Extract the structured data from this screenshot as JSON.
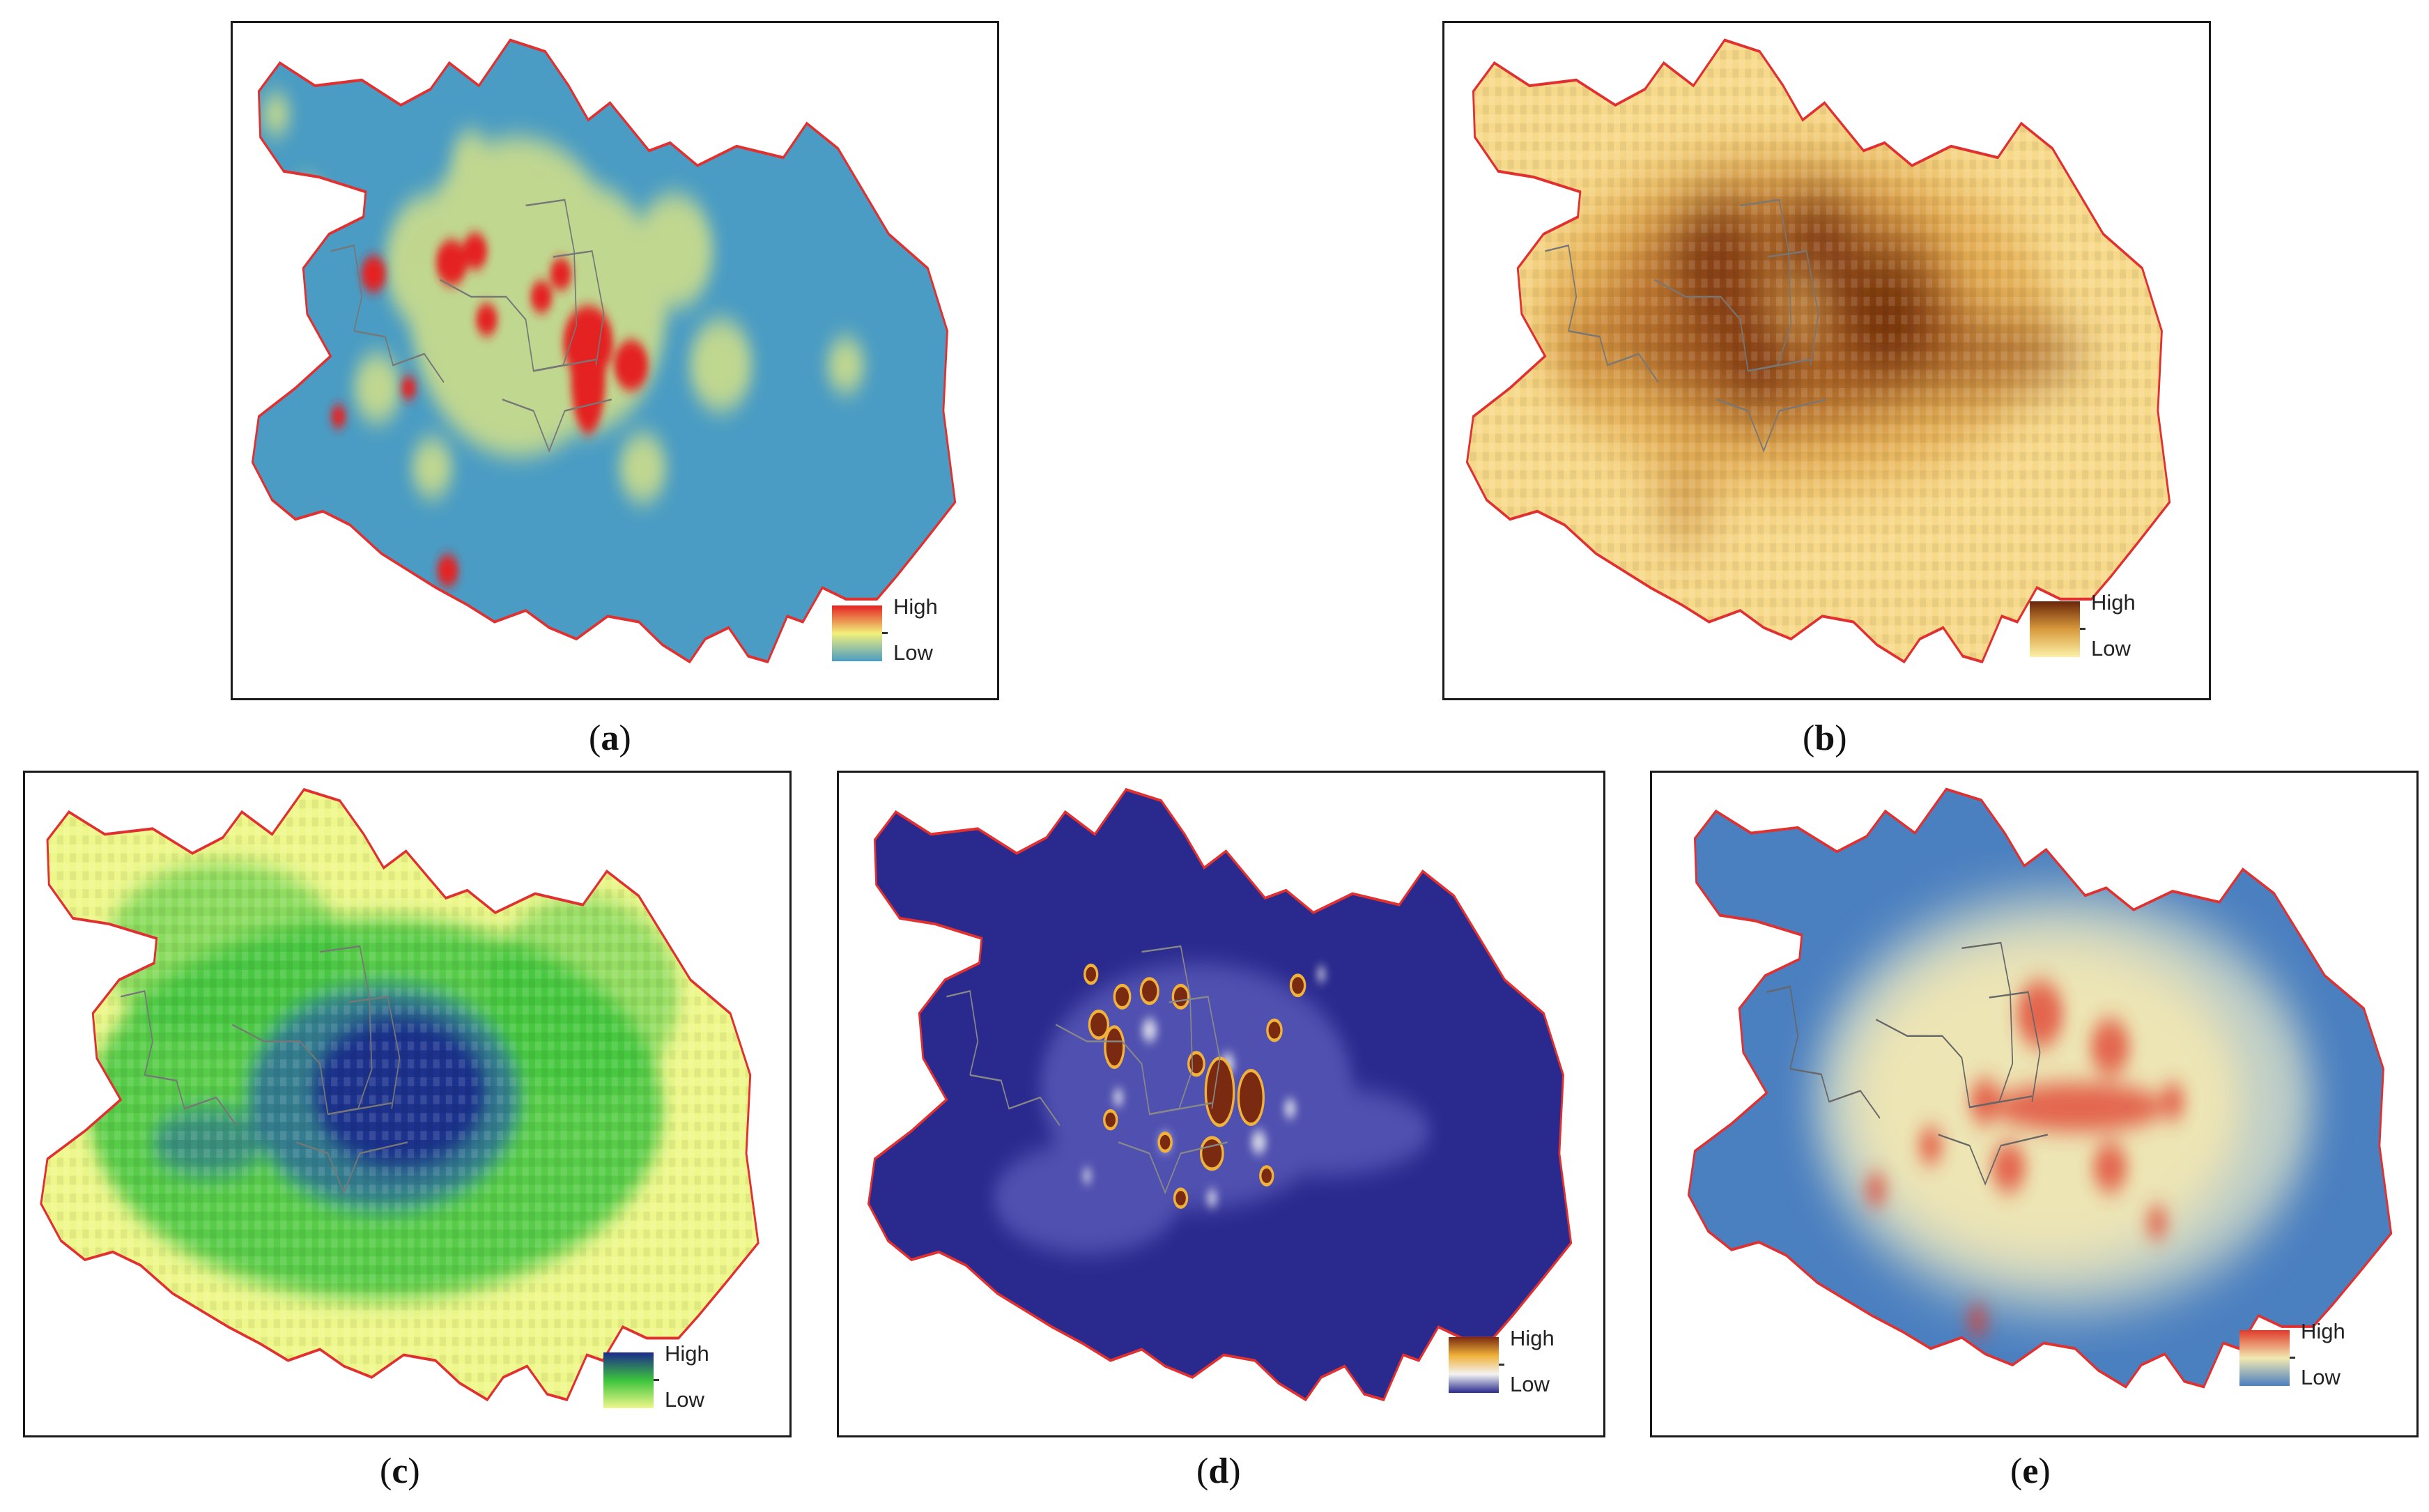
{
  "panels": [
    {
      "id": "a",
      "caption_open": "(",
      "caption_letter": "a",
      "caption_close": ")",
      "legend_high": "High",
      "legend_low": "Low",
      "colors": {
        "background": "#4a9cc4",
        "mid": "#f2f07a",
        "peak": "#e42222"
      }
    },
    {
      "id": "b",
      "caption_open": "(",
      "caption_letter": "b",
      "caption_close": ")",
      "legend_high": "High",
      "legend_low": "Low",
      "colors": {
        "background": "#f7d98a",
        "mid": "#d89a3c",
        "peak": "#6a2608"
      }
    },
    {
      "id": "c",
      "caption_open": "(",
      "caption_letter": "c",
      "caption_close": ")",
      "legend_high": "High",
      "legend_low": "Low",
      "colors": {
        "background": "#eef78a",
        "mid": "#3cc43c",
        "peak": "#1c2a8c"
      }
    },
    {
      "id": "d",
      "caption_open": "(",
      "caption_letter": "d",
      "caption_close": ")",
      "legend_high": "High",
      "legend_low": "Low",
      "colors": {
        "background": "#2a2a8e",
        "mid": "#f0b23a",
        "peak": "#7a2a10"
      }
    },
    {
      "id": "e",
      "caption_open": "(",
      "caption_letter": "e",
      "caption_close": ")",
      "legend_high": "High",
      "legend_low": "Low",
      "colors": {
        "background": "#4a7fc0",
        "mid": "#f2e8b2",
        "peak": "#e03a2a"
      }
    }
  ],
  "boundary_color": "#e03030",
  "district_line_color": "#777777"
}
